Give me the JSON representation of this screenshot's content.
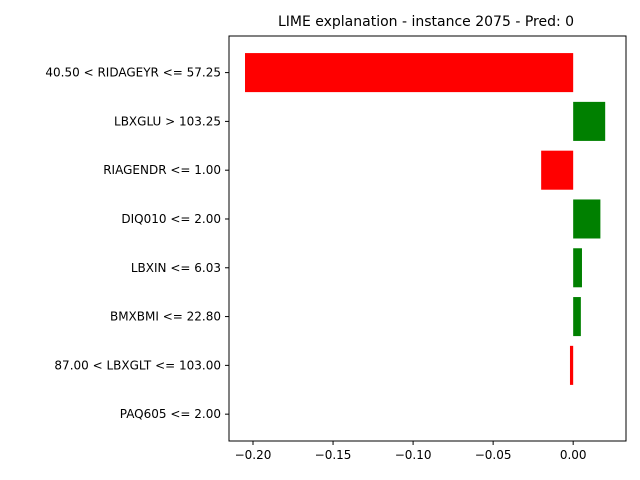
{
  "chart_data": {
    "type": "bar",
    "orientation": "horizontal",
    "title": "LIME explanation - instance 2075 - Pred: 0",
    "xlabel": "",
    "ylabel": "",
    "xlim": [
      -0.215,
      0.033
    ],
    "xticks": [
      -0.2,
      -0.15,
      -0.1,
      -0.05,
      0.0
    ],
    "xtick_labels": [
      "−0.20",
      "−0.15",
      "−0.10",
      "−0.05",
      "0.00"
    ],
    "categories": [
      "40.50 < RIDAGEYR <= 57.25",
      "LBXGLU > 103.25",
      "RIAGENDR <= 1.00",
      "DIQ010 <= 2.00",
      "LBXIN <= 6.03",
      "BMXBMI <= 22.80",
      "87.00 < LBXGLT <= 103.00",
      "PAQ605 <= 2.00"
    ],
    "values": [
      -0.205,
      0.02,
      -0.02,
      0.017,
      0.0055,
      0.0048,
      -0.002,
      0.0
    ],
    "colors": {
      "negative": "#ff0000",
      "positive": "#008000"
    },
    "grid": false,
    "legend": "none"
  }
}
